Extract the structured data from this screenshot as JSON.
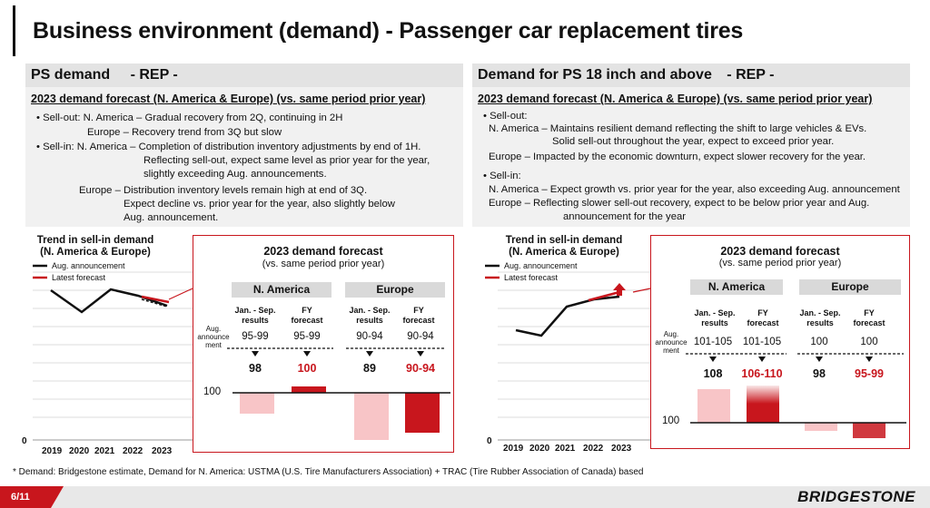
{
  "slide": {
    "title": "Business environment (demand) - Passenger car replacement tires",
    "page": "6/11",
    "brand": "BRIDGESTONE",
    "footnote": "* Demand: Bridgestone estimate, Demand for N. America: USTMA (U.S. Tire Manufacturers Association) + TRAC (Tire Rubber Association of Canada) based"
  },
  "colors": {
    "accent_red": "#c8161d",
    "light_red": "#f8c5c7",
    "grey_band": "#e3e3e3"
  },
  "left": {
    "heading": "PS demand",
    "tag": "- REP -",
    "subheading": "2023 demand forecast (N. America & Europe) (vs. same period prior year)",
    "lines": [
      "• Sell-out: N. America – Gradual recovery from 2Q, continuing in 2H",
      "Europe – Recovery trend from 3Q but slow",
      "• Sell-in: N. America – Completion of distribution inventory adjustments by end of 1H.",
      "Reflecting sell-out, expect same level as prior year for the year,",
      "slightly exceeding Aug. announcements.",
      "Europe – Distribution inventory levels remain high at end of 3Q.",
      "Expect decline vs. prior year for the year, also slightly below",
      "Aug. announcement."
    ],
    "trend": {
      "title_1": "Trend in sell-in demand",
      "title_2": "(N. America & Europe)",
      "legend_aug": "Aug. announcement",
      "legend_latest": "Latest forecast",
      "y_zero": "0",
      "years": [
        "2019",
        "2020",
        "2021",
        "2022",
        "2023"
      ]
    },
    "forecast": {
      "title": "2023 demand forecast",
      "subtitle": "(vs. same period prior year)",
      "aug_label": "Aug. announce ment",
      "baseline": "100",
      "regions": [
        {
          "name": "N. America",
          "col1": "Jan. - Sep. results",
          "col2": "FY forecast",
          "aug1": "95-99",
          "aug2": "95-99",
          "res1": "98",
          "res2": "100"
        },
        {
          "name": "Europe",
          "col1": "Jan. - Sep. results",
          "col2": "FY forecast",
          "aug1": "90-94",
          "aug2": "90-94",
          "res1": "89",
          "res2": "90-94"
        }
      ]
    }
  },
  "right": {
    "heading": "Demand for PS 18 inch and above",
    "tag": "- REP -",
    "subheading": "2023 demand forecast (N. America & Europe) (vs. same period prior year)",
    "lines": [
      "• Sell-out:",
      "N. America – Maintains resilient demand reflecting the shift to large vehicles & EVs.",
      "Solid sell-out throughout the year, expect to exceed prior year.",
      "Europe – Impacted by the economic downturn, expect slower recovery for the year.",
      "• Sell-in:",
      "N. America – Expect growth vs. prior year for the year, also exceeding Aug. announcement",
      "Europe – Reflecting slower sell-out recovery, expect to be below prior year and Aug.",
      "announcement for the year"
    ],
    "trend": {
      "title_1": "Trend in sell-in demand",
      "title_2": "(N. America & Europe)",
      "legend_aug": "Aug. announcement",
      "legend_latest": "Latest forecast",
      "y_zero": "0",
      "years": [
        "2019",
        "2020",
        "2021",
        "2022",
        "2023"
      ]
    },
    "forecast": {
      "title": "2023 demand forecast",
      "subtitle": "(vs. same period prior year)",
      "aug_label": "Aug. announce ment",
      "baseline": "100",
      "regions": [
        {
          "name": "N. America",
          "col1": "Jan. - Sep. results",
          "col2": "FY forecast",
          "aug1": "101-105",
          "aug2": "101-105",
          "res1": "108",
          "res2": "106-110"
        },
        {
          "name": "Europe",
          "col1": "Jan. - Sep. results",
          "col2": "FY forecast",
          "aug1": "100",
          "aug2": "100",
          "res1": "98",
          "res2": "95-99"
        }
      ]
    }
  }
}
